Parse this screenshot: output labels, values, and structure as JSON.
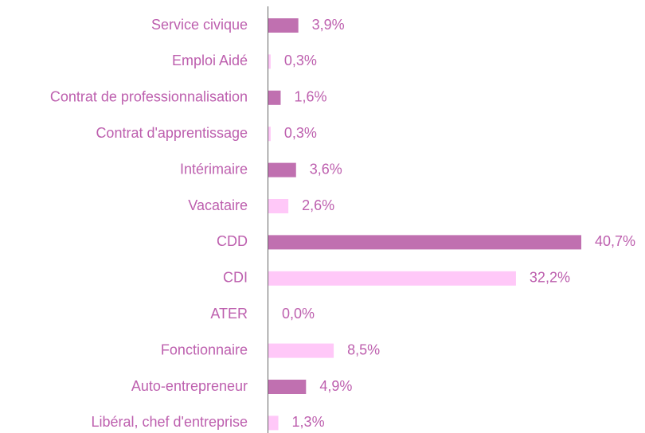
{
  "chart_data": {
    "type": "bar",
    "orientation": "horizontal",
    "categories": [
      "Service civique",
      "Emploi Aidé",
      "Contrat de professionnalisation",
      "Contrat d'apprentissage",
      "Intérimaire",
      "Vacataire",
      "CDD",
      "CDI",
      "ATER",
      "Fonctionnaire",
      "Auto-entrepreneur",
      "Libéral, chef d'entreprise"
    ],
    "values": [
      3.9,
      0.3,
      1.6,
      0.3,
      3.6,
      2.6,
      40.7,
      32.2,
      0.0,
      8.5,
      4.9,
      1.3
    ],
    "value_labels": [
      "3,9%",
      "0,3%",
      "1,6%",
      "0,3%",
      "3,6%",
      "2,6%",
      "40,7%",
      "32,2%",
      "0,0%",
      "8,5%",
      "4,9%",
      "1,3%"
    ],
    "colors": [
      "#c070b0",
      "#ffc8f8",
      "#c070b0",
      "#ffc8f8",
      "#c070b0",
      "#ffc8f8",
      "#c070b0",
      "#ffc8f8",
      "#c070b0",
      "#ffc8f8",
      "#c070b0",
      "#ffc8f8"
    ]
  }
}
